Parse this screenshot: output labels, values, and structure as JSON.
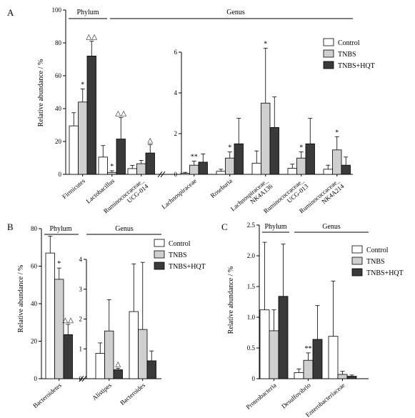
{
  "colors": {
    "Control": "#ffffff",
    "TNBS": "#cfcfcf",
    "TNBS+HQT": "#3a3a3a"
  },
  "legend_labels": [
    "Control",
    "TNBS",
    "TNBS+HQT"
  ],
  "chart_data": [
    {
      "type": "bar",
      "panel_label": "A",
      "ylabel": "Relative abundance / %",
      "legend": "top-right",
      "series_names": [
        "Control",
        "TNBS",
        "TNBS+HQT"
      ],
      "groups": [
        {
          "title": "Phylum",
          "ylim": [
            0,
            100
          ],
          "yticks": [
            "0",
            "20",
            "40",
            "60",
            "80",
            "100"
          ],
          "categories": [
            {
              "label": "Firmicutes",
              "values": [
                29.5,
                44,
                72
              ],
              "errors": [
                8,
                8,
                9
              ],
              "sig": [
                "",
                "*",
                "△△"
              ]
            },
            {
              "label": "Lactobacillus",
              "values": [
                10.5,
                1.2,
                21.5
              ],
              "errors": [
                7,
                1,
                13
              ],
              "sig": [
                "",
                "*",
                "△△"
              ]
            },
            {
              "label": "Ruminococcaceae_ UCG-014",
              "values": [
                3.5,
                6.5,
                13
              ],
              "errors": [
                2,
                2,
                5
              ],
              "sig": [
                "",
                "",
                "△"
              ]
            }
          ]
        },
        {
          "title": "Genus",
          "ylim": [
            0,
            6
          ],
          "yticks": [
            "0",
            "2",
            "4",
            "6"
          ],
          "categories": [
            {
              "label": "Lachnospiraceae",
              "values": [
                0.05,
                0.45,
                0.6
              ],
              "errors": [
                0.05,
                0.2,
                0.4
              ],
              "sig": [
                "",
                "**",
                ""
              ]
            },
            {
              "label": "Roseburia",
              "values": [
                0.15,
                0.8,
                1.5
              ],
              "errors": [
                0.1,
                0.3,
                1.25
              ],
              "sig": [
                "",
                "*",
                ""
              ]
            },
            {
              "label": "Lachnospiraceae_ NK4A136",
              "values": [
                0.55,
                3.5,
                2.3
              ],
              "errors": [
                0.6,
                2.7,
                1.5
              ],
              "sig": [
                "",
                "*",
                ""
              ]
            },
            {
              "label": "Ruminococcaceae_ UCG-013",
              "values": [
                0.3,
                0.8,
                1.5
              ],
              "errors": [
                0.2,
                0.3,
                1.25
              ],
              "sig": [
                "",
                "*",
                ""
              ]
            },
            {
              "label": "Ruminococcaceae_ NK4A214",
              "values": [
                0.25,
                1.2,
                0.45
              ],
              "errors": [
                0.2,
                0.65,
                0.4
              ],
              "sig": [
                "",
                "*",
                ""
              ]
            }
          ]
        }
      ]
    },
    {
      "type": "bar",
      "panel_label": "B",
      "ylabel": "Relative abundance / %",
      "legend": "top-right",
      "series_names": [
        "Control",
        "TNBS",
        "TNBS+HQT"
      ],
      "groups": [
        {
          "title": "Phylum",
          "ylim": [
            0,
            80
          ],
          "yticks": [
            "0",
            "20",
            "40",
            "60",
            "80"
          ],
          "categories": [
            {
              "label": "Bacteroidetes",
              "values": [
                67,
                53,
                23.5
              ],
              "errors": [
                9,
                6,
                5.5
              ],
              "sig": [
                "",
                "*",
                "△△"
              ]
            }
          ]
        },
        {
          "title": "Genus",
          "ylim": [
            0,
            4
          ],
          "yticks": [
            "0",
            "1",
            "2",
            "3",
            "4"
          ],
          "categories": [
            {
              "label": "Alistipes",
              "values": [
                0.85,
                1.6,
                0.3
              ],
              "errors": [
                0.35,
                1.05,
                0.05
              ],
              "sig": [
                "",
                "",
                "△"
              ]
            },
            {
              "label": "Bacteroides",
              "values": [
                2.25,
                1.65,
                0.6
              ],
              "errors": [
                1.6,
                2.25,
                0.33
              ],
              "sig": [
                "",
                "",
                ""
              ]
            }
          ]
        }
      ]
    },
    {
      "type": "bar",
      "panel_label": "C",
      "ylabel": "Relative abundance / %",
      "legend": "top-right",
      "series_names": [
        "Control",
        "TNBS",
        "TNBS+HQT"
      ],
      "group_titles": [
        "Phylum",
        "Genus"
      ],
      "ylim": [
        0,
        2.5
      ],
      "yticks": [
        "0",
        "0.5",
        "1.0",
        "1.5",
        "2.0",
        "2.5"
      ],
      "categories": [
        {
          "label": "Proteobacteria",
          "values": [
            1.12,
            0.78,
            1.34
          ],
          "errors": [
            1.1,
            0.34,
            0.85
          ],
          "sig": [
            "",
            "",
            ""
          ]
        },
        {
          "label": "Desulfovibrio",
          "values": [
            0.1,
            0.3,
            0.64
          ],
          "errors": [
            0.06,
            0.12,
            0.55
          ],
          "sig": [
            "",
            "**",
            ""
          ]
        },
        {
          "label": "Enterobacteriaceae",
          "values": [
            0.69,
            0.07,
            0.04
          ],
          "errors": [
            0.9,
            0.05,
            0.02
          ],
          "sig": [
            "",
            "",
            ""
          ]
        }
      ]
    }
  ]
}
